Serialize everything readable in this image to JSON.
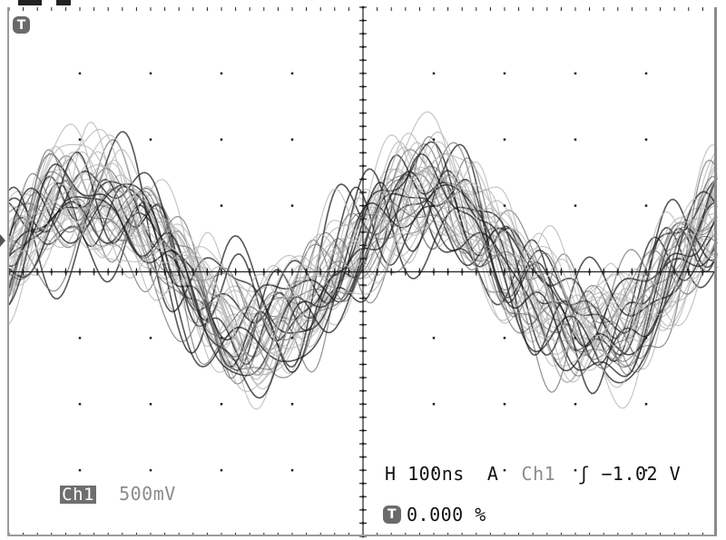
{
  "scope": {
    "trigger_marker": "T",
    "channel": {
      "label": "Ch1",
      "scale": "500mV"
    },
    "horizontal": {
      "prefix": "H",
      "timebase": "100ns",
      "mode": "A",
      "source": "Ch1",
      "slope_symbol": "ʃ",
      "level": "−1.02 V"
    },
    "trigger_position": "0.000 %"
  },
  "colors": {
    "background": "#ffffff",
    "grid": "#222222",
    "trace_dark": "#1e1e1e",
    "trace_mid": "#6a6a6a",
    "trace_light": "#b8b8b8"
  }
}
